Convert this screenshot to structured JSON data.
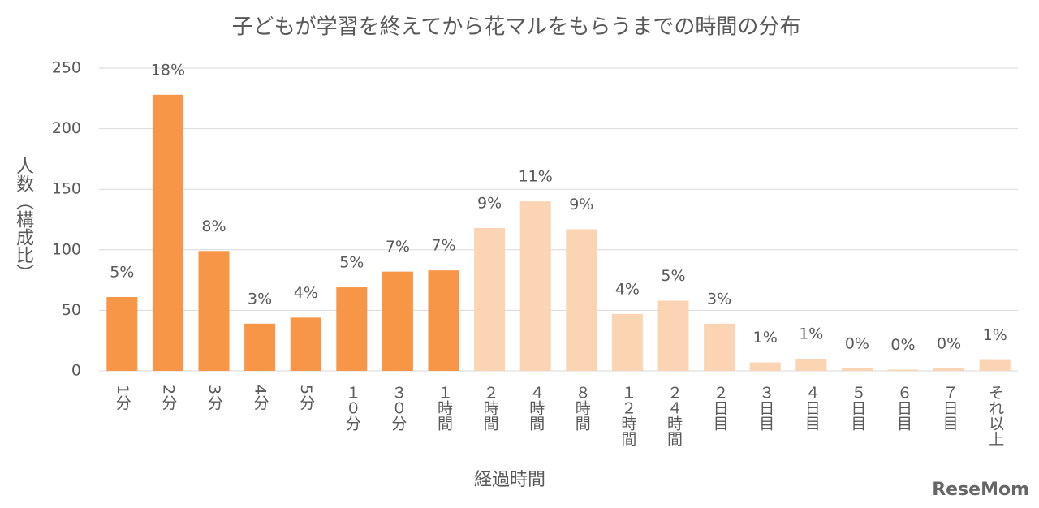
{
  "chart_data": {
    "type": "bar",
    "title": "子どもが学習を終えてから花マルをもらうまでの時間の分布",
    "y_label": "人数（構成比）",
    "x_label": "経過時間",
    "watermark": "ReseMom",
    "categories": [
      "1分",
      "2分",
      "3分",
      "4分",
      "5分",
      "１０分",
      "３０分",
      "１時間",
      "２時間",
      "４時間",
      "８時間",
      "１２時間",
      "２４時間",
      "２日目",
      "３日目",
      "４日目",
      "５日目",
      "６日目",
      "７日目",
      "それ以上"
    ],
    "values": [
      61,
      228,
      99,
      39,
      44,
      69,
      82,
      83,
      118,
      140,
      117,
      47,
      58,
      39,
      7,
      10,
      2,
      1,
      2,
      9
    ],
    "value_labels": [
      "5%",
      "18%",
      "8%",
      "3%",
      "4%",
      "5%",
      "7%",
      "7%",
      "9%",
      "11%",
      "9%",
      "4%",
      "5%",
      "3%",
      "1%",
      "1%",
      "0%",
      "0%",
      "0%",
      "1%"
    ],
    "colors": [
      "#f79646",
      "#f79646",
      "#f79646",
      "#f79646",
      "#f79646",
      "#f79646",
      "#f79646",
      "#f79646",
      "#fbd4b4",
      "#fbd4b4",
      "#fbd4b4",
      "#fbd4b4",
      "#fbd4b4",
      "#fbd4b4",
      "#fbd4b4",
      "#fbd4b4",
      "#fbd4b4",
      "#fbd4b4",
      "#fbd4b4",
      "#fbd4b4"
    ],
    "ylim": [
      0,
      250
    ],
    "yticks": [
      0,
      50,
      100,
      150,
      200,
      250
    ],
    "grid": true
  }
}
